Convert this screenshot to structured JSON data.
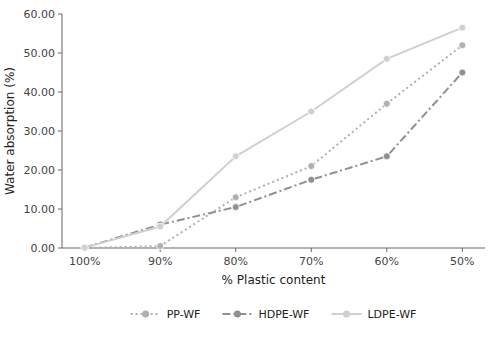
{
  "chart_data": {
    "type": "line",
    "xlabel": "% Plastic content",
    "ylabel": "Water absorption (%)",
    "x": [
      100,
      90,
      80,
      70,
      60,
      50
    ],
    "xlim": [
      103,
      47
    ],
    "xticks": [
      {
        "value": 100,
        "label": "100%"
      },
      {
        "value": 90,
        "label": "90%"
      },
      {
        "value": 80,
        "label": "80%"
      },
      {
        "value": 70,
        "label": "70%"
      },
      {
        "value": 60,
        "label": "60%"
      },
      {
        "value": 50,
        "label": "50%"
      }
    ],
    "ylim": [
      0,
      60
    ],
    "yticks": [
      {
        "value": 0,
        "label": "0.00"
      },
      {
        "value": 10,
        "label": "10.00"
      },
      {
        "value": 20,
        "label": "20.00"
      },
      {
        "value": 30,
        "label": "30.00"
      },
      {
        "value": 40,
        "label": "40.00"
      },
      {
        "value": 50,
        "label": "50.00"
      },
      {
        "value": 60,
        "label": "60.00"
      }
    ],
    "grid": false,
    "legend": "bottom",
    "series": [
      {
        "name": "PP-WF",
        "color": "#b0b0b0",
        "line_style": "dotted",
        "marker": "circle",
        "values": [
          0.0,
          0.5,
          13.0,
          21.0,
          37.0,
          52.0
        ]
      },
      {
        "name": "HDPE-WF",
        "color": "#909090",
        "line_style": "dashdot",
        "marker": "circle",
        "values": [
          0.1,
          6.0,
          10.5,
          17.5,
          23.5,
          45.0
        ]
      },
      {
        "name": "LDPE-WF",
        "color": "#d0d0d0",
        "line_style": "solid",
        "marker": "circle",
        "values": [
          0.1,
          5.5,
          23.5,
          35.0,
          48.5,
          56.5
        ]
      }
    ]
  }
}
